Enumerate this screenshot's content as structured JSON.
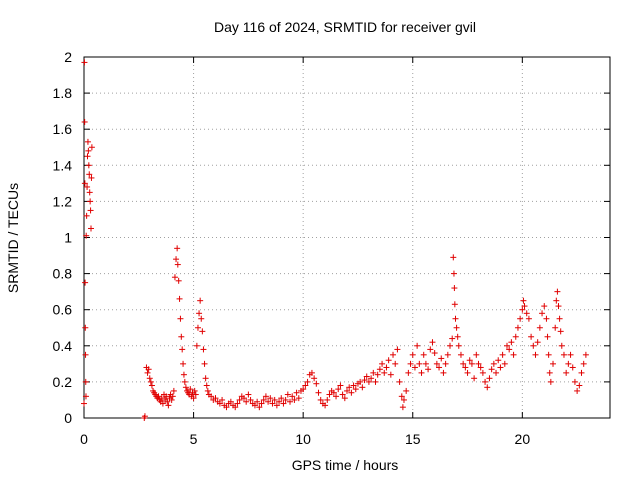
{
  "chart_data": {
    "type": "scatter",
    "title": "Day 116 of 2024, SRMTID for receiver gvil",
    "xlabel": "GPS time / hours",
    "ylabel": "SRMTID / TECUs",
    "xlim": [
      0,
      24
    ],
    "ylim": [
      0,
      2
    ],
    "xticks": [
      0,
      5,
      10,
      15,
      20
    ],
    "xtick_labels": [
      "0",
      "5",
      "10",
      "15",
      "20"
    ],
    "yticks": [
      0,
      0.2,
      0.4,
      0.6,
      0.8,
      1,
      1.2,
      1.4,
      1.6,
      1.8,
      2
    ],
    "ytick_labels": [
      "0",
      "0.2",
      "0.4",
      "0.6",
      "0.8",
      "1",
      "1.2",
      "1.4",
      "1.6",
      "1.8",
      "2"
    ],
    "grid": true,
    "marker": "+",
    "color": "#e00000",
    "series": [
      {
        "name": "gvil",
        "points": [
          [
            0.0,
            0.08
          ],
          [
            0.02,
            1.97
          ],
          [
            0.03,
            1.64
          ],
          [
            0.04,
            1.3
          ],
          [
            0.05,
            0.75
          ],
          [
            0.06,
            0.5
          ],
          [
            0.07,
            0.35
          ],
          [
            0.08,
            0.2
          ],
          [
            0.09,
            0.12
          ],
          [
            0.1,
            1.01
          ],
          [
            0.12,
            1.12
          ],
          [
            0.14,
            1.28
          ],
          [
            0.16,
            1.45
          ],
          [
            0.18,
            1.53
          ],
          [
            0.2,
            1.48
          ],
          [
            0.22,
            1.4
          ],
          [
            0.24,
            1.35
          ],
          [
            0.26,
            1.25
          ],
          [
            0.28,
            1.2
          ],
          [
            0.3,
            1.15
          ],
          [
            0.32,
            1.05
          ],
          [
            0.34,
            1.33
          ],
          [
            0.36,
            1.5
          ],
          [
            2.75,
            0.0
          ],
          [
            2.78,
            0.01
          ],
          [
            2.85,
            0.28
          ],
          [
            2.9,
            0.25
          ],
          [
            2.95,
            0.27
          ],
          [
            3.0,
            0.22
          ],
          [
            3.05,
            0.2
          ],
          [
            3.1,
            0.18
          ],
          [
            3.15,
            0.15
          ],
          [
            3.2,
            0.14
          ],
          [
            3.25,
            0.13
          ],
          [
            3.3,
            0.12
          ],
          [
            3.35,
            0.11
          ],
          [
            3.4,
            0.12
          ],
          [
            3.45,
            0.1
          ],
          [
            3.5,
            0.09
          ],
          [
            3.55,
            0.11
          ],
          [
            3.6,
            0.08
          ],
          [
            3.65,
            0.13
          ],
          [
            3.7,
            0.1
          ],
          [
            3.75,
            0.12
          ],
          [
            3.8,
            0.09
          ],
          [
            3.85,
            0.07
          ],
          [
            3.9,
            0.11
          ],
          [
            3.95,
            0.13
          ],
          [
            4.0,
            0.1
          ],
          [
            4.05,
            0.12
          ],
          [
            4.1,
            0.15
          ],
          [
            4.15,
            0.78
          ],
          [
            4.2,
            0.88
          ],
          [
            4.25,
            0.94
          ],
          [
            4.28,
            0.85
          ],
          [
            4.32,
            0.76
          ],
          [
            4.36,
            0.66
          ],
          [
            4.4,
            0.55
          ],
          [
            4.44,
            0.45
          ],
          [
            4.48,
            0.38
          ],
          [
            4.52,
            0.3
          ],
          [
            4.56,
            0.24
          ],
          [
            4.6,
            0.2
          ],
          [
            4.65,
            0.17
          ],
          [
            4.7,
            0.15
          ],
          [
            4.75,
            0.14
          ],
          [
            4.8,
            0.13
          ],
          [
            4.85,
            0.16
          ],
          [
            4.9,
            0.12
          ],
          [
            4.95,
            0.14
          ],
          [
            5.0,
            0.11
          ],
          [
            5.05,
            0.15
          ],
          [
            5.1,
            0.13
          ],
          [
            5.15,
            0.4
          ],
          [
            5.2,
            0.5
          ],
          [
            5.25,
            0.58
          ],
          [
            5.3,
            0.65
          ],
          [
            5.35,
            0.55
          ],
          [
            5.4,
            0.48
          ],
          [
            5.45,
            0.38
          ],
          [
            5.5,
            0.3
          ],
          [
            5.55,
            0.22
          ],
          [
            5.6,
            0.18
          ],
          [
            5.65,
            0.15
          ],
          [
            5.7,
            0.13
          ],
          [
            5.8,
            0.12
          ],
          [
            5.9,
            0.1
          ],
          [
            6.0,
            0.11
          ],
          [
            6.1,
            0.09
          ],
          [
            6.2,
            0.08
          ],
          [
            6.3,
            0.1
          ],
          [
            6.4,
            0.07
          ],
          [
            6.5,
            0.06
          ],
          [
            6.6,
            0.08
          ],
          [
            6.7,
            0.09
          ],
          [
            6.8,
            0.07
          ],
          [
            6.9,
            0.06
          ],
          [
            7.0,
            0.08
          ],
          [
            7.1,
            0.1
          ],
          [
            7.2,
            0.12
          ],
          [
            7.3,
            0.11
          ],
          [
            7.4,
            0.09
          ],
          [
            7.5,
            0.13
          ],
          [
            7.6,
            0.1
          ],
          [
            7.7,
            0.08
          ],
          [
            7.8,
            0.07
          ],
          [
            7.9,
            0.09
          ],
          [
            8.0,
            0.06
          ],
          [
            8.1,
            0.08
          ],
          [
            8.2,
            0.1
          ],
          [
            8.3,
            0.12
          ],
          [
            8.4,
            0.09
          ],
          [
            8.5,
            0.11
          ],
          [
            8.6,
            0.08
          ],
          [
            8.7,
            0.1
          ],
          [
            8.8,
            0.07
          ],
          [
            8.9,
            0.09
          ],
          [
            9.0,
            0.11
          ],
          [
            9.1,
            0.08
          ],
          [
            9.2,
            0.1
          ],
          [
            9.3,
            0.13
          ],
          [
            9.4,
            0.09
          ],
          [
            9.5,
            0.12
          ],
          [
            9.6,
            0.1
          ],
          [
            9.7,
            0.14
          ],
          [
            9.8,
            0.11
          ],
          [
            9.9,
            0.15
          ],
          [
            10.0,
            0.16
          ],
          [
            10.1,
            0.18
          ],
          [
            10.2,
            0.2
          ],
          [
            10.3,
            0.24
          ],
          [
            10.4,
            0.25
          ],
          [
            10.5,
            0.22
          ],
          [
            10.6,
            0.19
          ],
          [
            10.7,
            0.14
          ],
          [
            10.8,
            0.1
          ],
          [
            10.9,
            0.08
          ],
          [
            11.0,
            0.07
          ],
          [
            11.1,
            0.1
          ],
          [
            11.2,
            0.13
          ],
          [
            11.3,
            0.15
          ],
          [
            11.4,
            0.14
          ],
          [
            11.5,
            0.12
          ],
          [
            11.6,
            0.16
          ],
          [
            11.7,
            0.18
          ],
          [
            11.8,
            0.13
          ],
          [
            11.9,
            0.11
          ],
          [
            12.0,
            0.15
          ],
          [
            12.1,
            0.17
          ],
          [
            12.2,
            0.14
          ],
          [
            12.3,
            0.18
          ],
          [
            12.4,
            0.16
          ],
          [
            12.5,
            0.19
          ],
          [
            12.6,
            0.2
          ],
          [
            12.7,
            0.17
          ],
          [
            12.8,
            0.21
          ],
          [
            12.9,
            0.23
          ],
          [
            13.0,
            0.2
          ],
          [
            13.1,
            0.22
          ],
          [
            13.2,
            0.25
          ],
          [
            13.3,
            0.2
          ],
          [
            13.4,
            0.24
          ],
          [
            13.5,
            0.27
          ],
          [
            13.6,
            0.3
          ],
          [
            13.7,
            0.25
          ],
          [
            13.8,
            0.28
          ],
          [
            13.9,
            0.32
          ],
          [
            14.0,
            0.24
          ],
          [
            14.1,
            0.35
          ],
          [
            14.2,
            0.3
          ],
          [
            14.3,
            0.38
          ],
          [
            14.4,
            0.2
          ],
          [
            14.5,
            0.12
          ],
          [
            14.55,
            0.06
          ],
          [
            14.6,
            0.1
          ],
          [
            14.7,
            0.15
          ],
          [
            14.8,
            0.25
          ],
          [
            14.9,
            0.3
          ],
          [
            15.0,
            0.35
          ],
          [
            15.1,
            0.28
          ],
          [
            15.2,
            0.4
          ],
          [
            15.3,
            0.3
          ],
          [
            15.4,
            0.25
          ],
          [
            15.5,
            0.35
          ],
          [
            15.6,
            0.3
          ],
          [
            15.7,
            0.27
          ],
          [
            15.8,
            0.38
          ],
          [
            15.9,
            0.42
          ],
          [
            16.0,
            0.36
          ],
          [
            16.1,
            0.3
          ],
          [
            16.2,
            0.28
          ],
          [
            16.3,
            0.33
          ],
          [
            16.4,
            0.25
          ],
          [
            16.5,
            0.3
          ],
          [
            16.6,
            0.35
          ],
          [
            16.7,
            0.4
          ],
          [
            16.8,
            0.44
          ],
          [
            16.85,
            0.89
          ],
          [
            16.88,
            0.8
          ],
          [
            16.9,
            0.72
          ],
          [
            16.92,
            0.63
          ],
          [
            16.95,
            0.55
          ],
          [
            17.0,
            0.5
          ],
          [
            17.05,
            0.45
          ],
          [
            17.1,
            0.4
          ],
          [
            17.2,
            0.35
          ],
          [
            17.3,
            0.3
          ],
          [
            17.4,
            0.28
          ],
          [
            17.5,
            0.25
          ],
          [
            17.6,
            0.32
          ],
          [
            17.7,
            0.3
          ],
          [
            17.8,
            0.22
          ],
          [
            17.9,
            0.35
          ],
          [
            18.0,
            0.3
          ],
          [
            18.1,
            0.28
          ],
          [
            18.2,
            0.25
          ],
          [
            18.3,
            0.2
          ],
          [
            18.4,
            0.17
          ],
          [
            18.5,
            0.22
          ],
          [
            18.6,
            0.27
          ],
          [
            18.7,
            0.3
          ],
          [
            18.8,
            0.25
          ],
          [
            18.9,
            0.32
          ],
          [
            19.0,
            0.28
          ],
          [
            19.1,
            0.35
          ],
          [
            19.2,
            0.3
          ],
          [
            19.3,
            0.4
          ],
          [
            19.4,
            0.38
          ],
          [
            19.5,
            0.42
          ],
          [
            19.6,
            0.35
          ],
          [
            19.7,
            0.45
          ],
          [
            19.8,
            0.5
          ],
          [
            19.9,
            0.55
          ],
          [
            20.0,
            0.6
          ],
          [
            20.05,
            0.65
          ],
          [
            20.1,
            0.62
          ],
          [
            20.2,
            0.58
          ],
          [
            20.3,
            0.55
          ],
          [
            20.4,
            0.45
          ],
          [
            20.5,
            0.4
          ],
          [
            20.6,
            0.35
          ],
          [
            20.7,
            0.42
          ],
          [
            20.8,
            0.5
          ],
          [
            20.9,
            0.58
          ],
          [
            21.0,
            0.62
          ],
          [
            21.1,
            0.55
          ],
          [
            21.15,
            0.45
          ],
          [
            21.2,
            0.35
          ],
          [
            21.25,
            0.25
          ],
          [
            21.3,
            0.2
          ],
          [
            21.4,
            0.3
          ],
          [
            21.5,
            0.5
          ],
          [
            21.55,
            0.65
          ],
          [
            21.6,
            0.7
          ],
          [
            21.65,
            0.62
          ],
          [
            21.7,
            0.55
          ],
          [
            21.75,
            0.48
          ],
          [
            21.8,
            0.4
          ],
          [
            21.9,
            0.35
          ],
          [
            22.0,
            0.25
          ],
          [
            22.1,
            0.3
          ],
          [
            22.2,
            0.35
          ],
          [
            22.3,
            0.28
          ],
          [
            22.4,
            0.2
          ],
          [
            22.5,
            0.15
          ],
          [
            22.6,
            0.18
          ],
          [
            22.7,
            0.25
          ],
          [
            22.8,
            0.3
          ],
          [
            22.9,
            0.35
          ]
        ]
      }
    ]
  }
}
